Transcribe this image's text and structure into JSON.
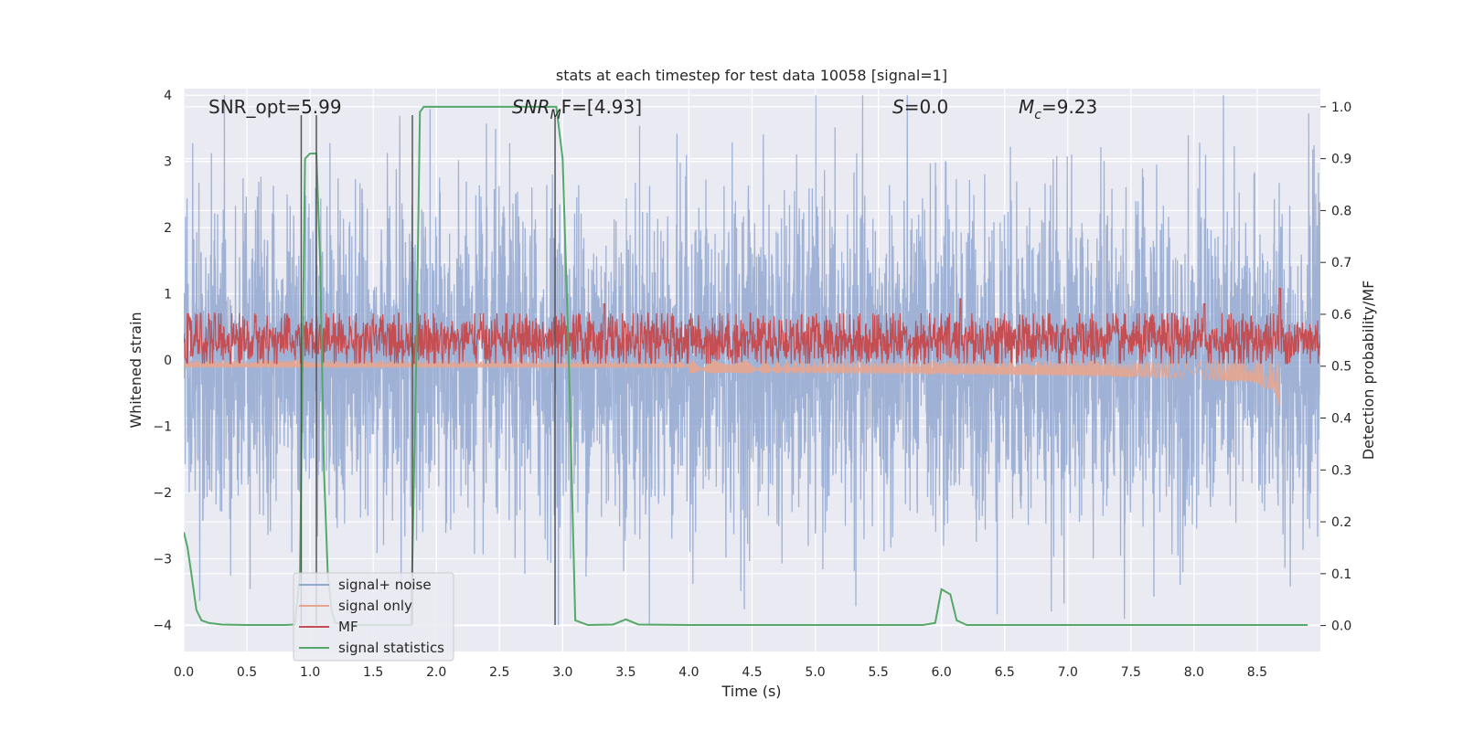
{
  "chart_data": {
    "type": "line",
    "title": "stats at each timestep for test data 10058 [signal=1]",
    "xlabel": "Time (s)",
    "ylabel_left": "Whitened strain",
    "ylabel_right": "Detection probability/MF",
    "xlim": [
      0,
      9.0
    ],
    "ylim_left": [
      -4.4,
      4.1
    ],
    "ylim_right": [
      -0.05,
      1.035
    ],
    "x_ticks": [
      "0.0",
      "0.5",
      "1.0",
      "1.5",
      "2.0",
      "2.5",
      "3.0",
      "3.5",
      "4.0",
      "4.5",
      "5.0",
      "5.5",
      "6.0",
      "6.5",
      "7.0",
      "7.5",
      "8.0",
      "8.5"
    ],
    "y_left_ticks": [
      "4",
      "3",
      "2",
      "1",
      "0",
      "−1",
      "−2",
      "−3",
      "−4"
    ],
    "y_right_ticks": [
      "1.0",
      "0.9",
      "0.8",
      "0.7",
      "0.6",
      "0.5",
      "0.4",
      "0.3",
      "0.2",
      "0.1",
      "0.0"
    ],
    "grid": true,
    "legend_position": "lower-left",
    "annotations": {
      "snr_opt": "SNR_opt=5.99",
      "snr_mf_main": "SNR",
      "snr_mf_sub": "M",
      "snr_mf_rest": "F=[4.93]",
      "s_var": "S",
      "s_rest": "=0.0",
      "mc_main": "M",
      "mc_sub": "c",
      "mc_rest": "=9.23"
    },
    "vertical_markers": [
      0.93,
      1.05,
      1.81,
      2.94
    ],
    "marker_ymin": -4.0,
    "marker_ymax": 3.7,
    "series": [
      {
        "name": "signal+ noise",
        "color": "#92a8d1",
        "axis": "left",
        "description_range": [
          -4.0,
          4.0
        ]
      },
      {
        "name": "signal only",
        "color": "#e7a58f",
        "axis": "left",
        "chirp_end_time": 8.68,
        "chirp_min_amplitude": -0.9
      },
      {
        "name": "MF",
        "color": "#c44e52",
        "axis": "right",
        "typical_range": [
          0.51,
          0.6
        ],
        "peaks": [
          {
            "x": 3.33,
            "y": 0.62
          },
          {
            "x": 6.15,
            "y": 0.63
          },
          {
            "x": 8.08,
            "y": 0.62
          },
          {
            "x": 8.68,
            "y": 0.65
          }
        ]
      },
      {
        "name": "signal statistics",
        "color": "#55a868",
        "axis": "right",
        "x": [
          0.0,
          0.03,
          0.06,
          0.1,
          0.14,
          0.2,
          0.3,
          0.5,
          0.8,
          0.88,
          0.92,
          0.96,
          1.0,
          1.05,
          1.08,
          1.11,
          1.14,
          1.17,
          1.2,
          1.3,
          1.6,
          1.8,
          1.84,
          1.87,
          1.9,
          1.93,
          2.0,
          2.5,
          2.9,
          2.95,
          3.0,
          3.05,
          3.1,
          3.2,
          3.4,
          3.5,
          3.6,
          4.0,
          5.0,
          5.85,
          5.95,
          6.0,
          6.07,
          6.12,
          6.2,
          6.5,
          7.0,
          8.0,
          8.9
        ],
        "values": [
          0.18,
          0.15,
          0.1,
          0.03,
          0.01,
          0.005,
          0.002,
          0.001,
          0.001,
          0.002,
          0.1,
          0.9,
          0.91,
          0.91,
          0.7,
          0.3,
          0.1,
          0.03,
          0.005,
          0.001,
          0.001,
          0.001,
          0.5,
          0.99,
          1.0,
          1.0,
          1.0,
          1.0,
          1.0,
          1.0,
          0.9,
          0.5,
          0.01,
          0.001,
          0.002,
          0.012,
          0.002,
          0.001,
          0.001,
          0.001,
          0.005,
          0.07,
          0.06,
          0.01,
          0.001,
          0.001,
          0.001,
          0.001,
          0.001
        ]
      }
    ]
  }
}
